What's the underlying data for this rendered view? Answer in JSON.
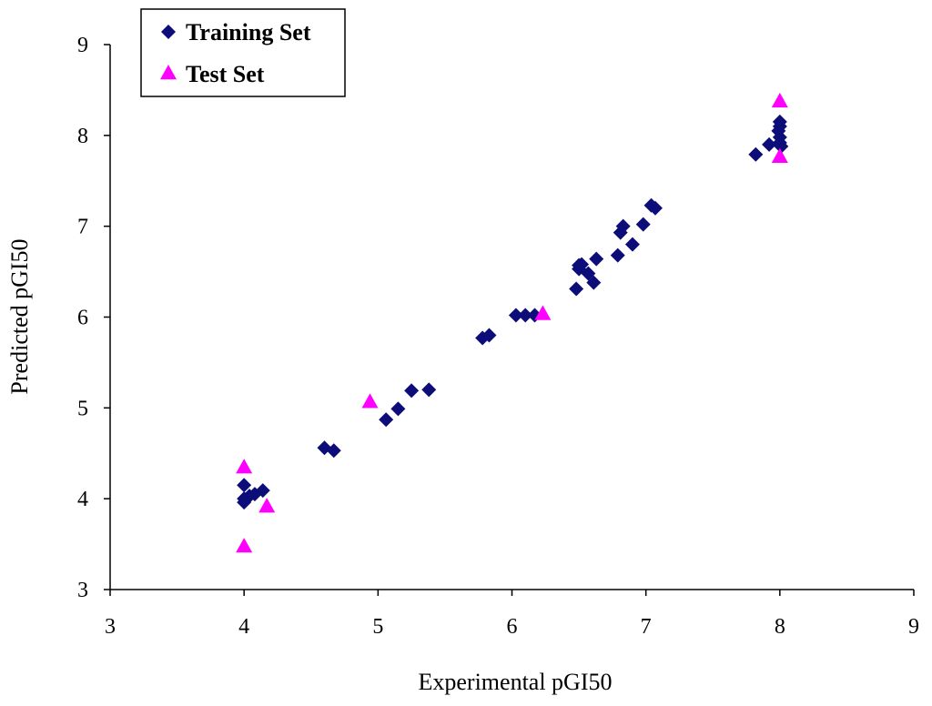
{
  "chart_data": {
    "type": "scatter",
    "xlabel": "Experimental pGI50",
    "ylabel": "Predicted pGI50",
    "xlim": [
      3,
      9
    ],
    "ylim": [
      3,
      9
    ],
    "xticks": [
      "3",
      "4",
      "5",
      "6",
      "7",
      "8",
      "9"
    ],
    "yticks": [
      "3",
      "4",
      "5",
      "6",
      "7",
      "8",
      "9"
    ],
    "grid": false,
    "legend_position": "top-left",
    "series": [
      {
        "name": "Training Set",
        "marker": "diamond",
        "color": "#0D0D7A",
        "points": [
          [
            4.0,
            3.96
          ],
          [
            4.0,
            4.0
          ],
          [
            4.0,
            4.15
          ],
          [
            4.04,
            4.03
          ],
          [
            4.08,
            4.05
          ],
          [
            4.14,
            4.09
          ],
          [
            4.6,
            4.56
          ],
          [
            4.67,
            4.53
          ],
          [
            5.06,
            4.87
          ],
          [
            5.15,
            4.99
          ],
          [
            5.25,
            5.19
          ],
          [
            5.38,
            5.2
          ],
          [
            5.78,
            5.77
          ],
          [
            5.83,
            5.8
          ],
          [
            6.03,
            6.02
          ],
          [
            6.1,
            6.02
          ],
          [
            6.17,
            6.02
          ],
          [
            6.48,
            6.31
          ],
          [
            6.5,
            6.53
          ],
          [
            6.5,
            6.57
          ],
          [
            6.52,
            6.58
          ],
          [
            6.57,
            6.48
          ],
          [
            6.61,
            6.38
          ],
          [
            6.63,
            6.64
          ],
          [
            6.79,
            6.68
          ],
          [
            6.81,
            6.93
          ],
          [
            6.83,
            7.0
          ],
          [
            6.9,
            6.8
          ],
          [
            6.98,
            7.02
          ],
          [
            7.04,
            7.23
          ],
          [
            7.07,
            7.2
          ],
          [
            7.82,
            7.79
          ],
          [
            7.92,
            7.9
          ],
          [
            7.99,
            8.05
          ],
          [
            8.0,
            8.1
          ],
          [
            8.0,
            8.15
          ],
          [
            8.0,
            7.92
          ],
          [
            8.01,
            7.88
          ],
          [
            8.0,
            7.98
          ]
        ]
      },
      {
        "name": "Test Set",
        "marker": "triangle",
        "color": "#FF00FF",
        "points": [
          [
            4.0,
            3.48
          ],
          [
            4.0,
            4.35
          ],
          [
            4.17,
            3.92
          ],
          [
            4.94,
            5.07
          ],
          [
            6.23,
            6.04
          ],
          [
            8.0,
            7.77
          ],
          [
            8.0,
            8.38
          ]
        ]
      }
    ]
  }
}
